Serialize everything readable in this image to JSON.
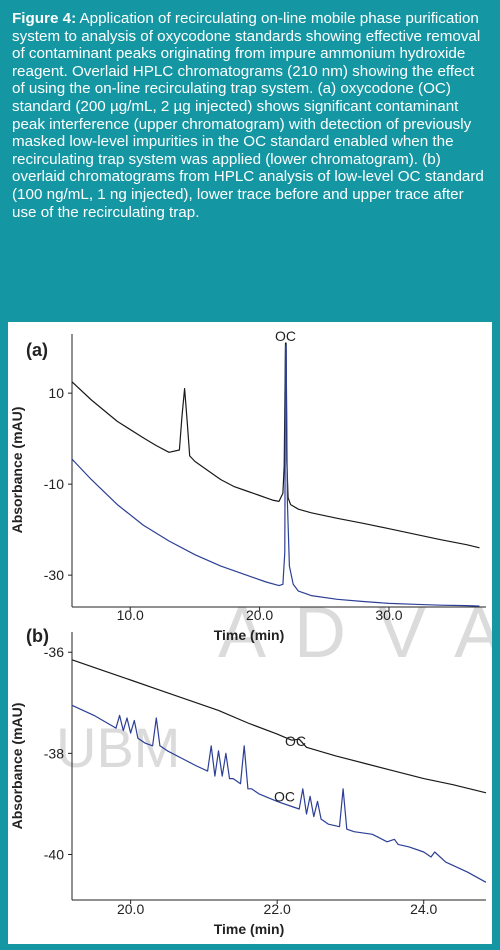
{
  "caption": {
    "label": "Figure 4:",
    "text": " Application of recirculating on-line mobile phase purification system to analysis of oxycodone standards showing effective removal of contaminant peaks originating from impure ammonium hydroxide reagent. Overlaid HPLC chromatograms (210 nm) showing the effect of using the on-line recirculating trap system. (a) oxycodone (OC) standard (200 µg/mL, 2 µg injected) shows significant contaminant peak interference (upper chromatogram) with detection of previously masked low-level impurities in the OC standard enabled when the recirculating trap system was applied (lower chromatogram).  (b) overlaid chromatograms from HPLC analysis of low-level OC standard (100 ng/mL, 1 ng injected), lower trace before and upper trace after use of the recirculating trap."
  },
  "watermark": {
    "brand1": "A D V A",
    "brand2": "UBM"
  },
  "colors": {
    "background": "#1497a3",
    "black_trace": "#1a1a1a",
    "blue_trace": "#2c3f96"
  },
  "chart_data": [
    {
      "type": "line",
      "panel_label": "(a)",
      "xlabel": "Time (min)",
      "ylabel": "Absorbance (mAU)",
      "xlim": [
        5.5,
        37.5
      ],
      "ylim": [
        -37,
        23
      ],
      "xticks": [
        10.0,
        20.0,
        30.0
      ],
      "xtick_labels": [
        "10.0",
        "20.0",
        "30.0"
      ],
      "yticks": [
        10,
        -10,
        -30
      ],
      "ytick_labels": [
        "10",
        "-10",
        "-30"
      ],
      "annotations": [
        {
          "text": "OC",
          "x": 22.0,
          "y": 21.5
        }
      ],
      "series": [
        {
          "color": "#1a1a1a",
          "x": [
            5.5,
            7,
            9,
            11,
            12,
            13,
            13.8,
            14.0,
            14.2,
            14.4,
            14.6,
            15,
            16,
            17,
            18,
            19,
            20,
            20.5,
            21,
            21.5,
            21.8,
            21.9,
            22.0,
            22.05,
            22.1,
            22.2,
            22.4,
            23,
            24,
            26,
            28,
            30,
            32,
            34,
            36,
            37
          ],
          "y": [
            12.5,
            8.5,
            3.8,
            0.2,
            -1.5,
            -3.0,
            -2.5,
            5.0,
            11.0,
            4.0,
            -3.8,
            -5.0,
            -7.0,
            -9.0,
            -10.5,
            -11.5,
            -12.5,
            -13.0,
            -13.5,
            -13.8,
            -12.0,
            -6.0,
            21.0,
            21.0,
            -5.0,
            -13.0,
            -14.5,
            -15.5,
            -16.3,
            -17.5,
            -18.6,
            -19.8,
            -21.0,
            -22.2,
            -23.3,
            -24.0
          ]
        },
        {
          "color": "#2c3f96",
          "x": [
            5.5,
            7,
            9,
            11,
            13,
            15,
            17,
            19,
            20.5,
            21.5,
            21.8,
            21.95,
            22.0,
            22.05,
            22.15,
            22.3,
            22.6,
            23,
            24,
            26,
            28,
            30,
            32,
            34,
            36,
            37
          ],
          "y": [
            -4.5,
            -9.0,
            -14.5,
            -19.0,
            -22.5,
            -25.5,
            -28.0,
            -30.0,
            -31.5,
            -32.3,
            -32.0,
            -25.0,
            20.5,
            20.5,
            -14.0,
            -28.0,
            -32.0,
            -33.5,
            -34.5,
            -35.3,
            -35.8,
            -36.2,
            -36.4,
            -36.6,
            -36.7,
            -36.8
          ]
        }
      ]
    },
    {
      "type": "line",
      "panel_label": "(b)",
      "xlabel": "Time (min)",
      "ylabel": "Absorbance (mAU)",
      "xlim": [
        19.2,
        24.85
      ],
      "ylim": [
        -40.9,
        -35.6
      ],
      "xticks": [
        20.0,
        22.0,
        24.0
      ],
      "xtick_labels": [
        "20.0",
        "22.0",
        "24.0"
      ],
      "yticks": [
        -36,
        -38,
        -40
      ],
      "ytick_labels": [
        "-36",
        "-38",
        "-40"
      ],
      "annotations": [
        {
          "text": "OC",
          "x": 22.25,
          "y": -37.85
        },
        {
          "text": "OC",
          "x": 22.1,
          "y": -38.95
        }
      ],
      "series": [
        {
          "color": "#1a1a1a",
          "x": [
            19.2,
            19.6,
            20.0,
            20.4,
            20.8,
            21.2,
            21.6,
            22.0,
            22.1,
            22.2,
            22.3,
            22.4,
            22.8,
            23.2,
            23.6,
            24.0,
            24.4,
            24.85
          ],
          "y": [
            -36.15,
            -36.35,
            -36.55,
            -36.75,
            -36.95,
            -37.15,
            -37.4,
            -37.62,
            -37.68,
            -37.74,
            -37.72,
            -37.88,
            -38.05,
            -38.2,
            -38.35,
            -38.5,
            -38.62,
            -38.78
          ]
        },
        {
          "color": "#2c3f96",
          "x": [
            19.2,
            19.5,
            19.8,
            19.85,
            19.9,
            19.95,
            20.0,
            20.05,
            20.1,
            20.2,
            20.3,
            20.35,
            20.4,
            20.5,
            20.7,
            20.9,
            21.05,
            21.1,
            21.15,
            21.2,
            21.25,
            21.3,
            21.35,
            21.4,
            21.5,
            21.55,
            21.6,
            21.65,
            21.75,
            22.0,
            22.2,
            22.3,
            22.35,
            22.4,
            22.45,
            22.5,
            22.55,
            22.6,
            22.7,
            22.85,
            22.9,
            22.95,
            23.05,
            23.3,
            23.5,
            23.6,
            23.65,
            23.8,
            24.0,
            24.1,
            24.15,
            24.3,
            24.6,
            24.85
          ],
          "y": [
            -37.05,
            -37.25,
            -37.5,
            -37.25,
            -37.55,
            -37.3,
            -37.6,
            -37.35,
            -37.7,
            -37.8,
            -37.85,
            -37.3,
            -37.85,
            -37.95,
            -38.1,
            -38.25,
            -38.35,
            -37.85,
            -38.45,
            -37.95,
            -38.45,
            -38.0,
            -38.5,
            -38.5,
            -38.6,
            -37.85,
            -38.7,
            -38.7,
            -38.8,
            -38.95,
            -39.05,
            -39.1,
            -38.7,
            -39.2,
            -38.85,
            -39.25,
            -38.95,
            -39.3,
            -39.4,
            -39.45,
            -38.7,
            -39.5,
            -39.55,
            -39.6,
            -39.75,
            -39.7,
            -39.8,
            -39.85,
            -39.95,
            -40.05,
            -39.95,
            -40.15,
            -40.35,
            -40.55
          ]
        }
      ]
    }
  ]
}
